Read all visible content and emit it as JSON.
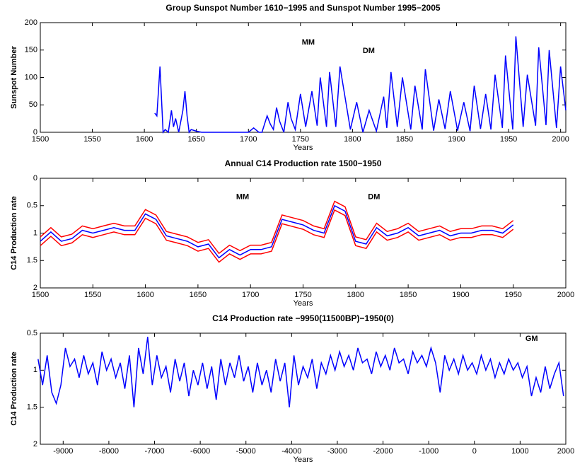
{
  "chart_data": [
    {
      "type": "line",
      "title": "Group Sunspot Number 1610−1995 and Sunspot Number 1995−2005",
      "xlabel": "Years",
      "ylabel": "Sunspot Number",
      "annotations": [
        "MM",
        "DM"
      ],
      "xlim": [
        1500,
        2005
      ],
      "ylim": [
        0,
        200
      ],
      "xticks": [
        1500,
        1550,
        1600,
        1650,
        1700,
        1750,
        1800,
        1850,
        1900,
        1950,
        2000
      ],
      "yticks": [
        0,
        50,
        100,
        150,
        200
      ],
      "series": [
        {
          "color": "#0000ff",
          "x": [
            1610,
            1612,
            1615,
            1618,
            1620,
            1623,
            1626,
            1628,
            1630,
            1633,
            1637,
            1639,
            1641,
            1643,
            1645,
            1650,
            1655,
            1660,
            1670,
            1680,
            1690,
            1700,
            1705,
            1710,
            1713,
            1718,
            1721,
            1724,
            1727,
            1730,
            1734,
            1738,
            1741,
            1745,
            1750,
            1755,
            1761,
            1766,
            1769,
            1775,
            1778,
            1784,
            1788,
            1798,
            1804,
            1810,
            1816,
            1823,
            1830,
            1833,
            1837,
            1843,
            1848,
            1856,
            1860,
            1867,
            1870,
            1878,
            1883,
            1889,
            1894,
            1901,
            1907,
            1913,
            1917,
            1923,
            1928,
            1933,
            1937,
            1944,
            1947,
            1954,
            1957,
            1964,
            1968,
            1976,
            1979,
            1986,
            1989,
            1996,
            2000,
            2005
          ],
          "values": [
            35,
            30,
            120,
            0,
            5,
            0,
            40,
            10,
            25,
            0,
            40,
            75,
            30,
            0,
            5,
            2,
            0,
            0,
            0,
            0,
            0,
            0,
            8,
            0,
            0,
            30,
            15,
            5,
            45,
            20,
            0,
            55,
            25,
            5,
            70,
            10,
            75,
            12,
            100,
            10,
            110,
            10,
            120,
            5,
            55,
            0,
            40,
            2,
            65,
            8,
            110,
            10,
            100,
            5,
            85,
            5,
            115,
            3,
            60,
            6,
            75,
            3,
            55,
            2,
            85,
            6,
            70,
            5,
            105,
            8,
            140,
            5,
            175,
            10,
            105,
            12,
            155,
            13,
            150,
            8,
            120,
            40
          ]
        }
      ]
    },
    {
      "type": "line",
      "title": "Annual C14 Production rate 1500−1950",
      "xlabel": "Years",
      "ylabel": "C14 Production rate",
      "annotations": [
        "MM",
        "DM"
      ],
      "xlim": [
        1500,
        2000
      ],
      "ylim": [
        0,
        2
      ],
      "y_reversed": true,
      "xticks": [
        1500,
        1550,
        1600,
        1650,
        1700,
        1750,
        1800,
        1850,
        1900,
        1950,
        2000
      ],
      "yticks": [
        0,
        0.5,
        1,
        1.5,
        2
      ],
      "series": [
        {
          "color": "#ff0000",
          "x": [
            1500,
            1510,
            1520,
            1530,
            1540,
            1550,
            1560,
            1570,
            1580,
            1590,
            1600,
            1610,
            1620,
            1630,
            1640,
            1650,
            1660,
            1670,
            1680,
            1690,
            1700,
            1710,
            1720,
            1730,
            1740,
            1750,
            1760,
            1770,
            1780,
            1790,
            1800,
            1810,
            1820,
            1830,
            1840,
            1850,
            1860,
            1870,
            1880,
            1890,
            1900,
            1910,
            1920,
            1930,
            1940,
            1950
          ],
          "values": [
            1.07,
            0.9,
            1.07,
            1.02,
            0.87,
            0.92,
            0.87,
            0.82,
            0.87,
            0.87,
            0.57,
            0.67,
            0.97,
            1.02,
            1.07,
            1.17,
            1.12,
            1.37,
            1.22,
            1.32,
            1.22,
            1.22,
            1.17,
            0.67,
            0.72,
            0.77,
            0.87,
            0.92,
            0.42,
            0.52,
            1.07,
            1.12,
            0.82,
            0.97,
            0.92,
            0.82,
            0.97,
            0.92,
            0.87,
            0.97,
            0.92,
            0.92,
            0.87,
            0.87,
            0.92,
            0.77
          ]
        },
        {
          "color": "#ff0000",
          "x": [
            1500,
            1510,
            1520,
            1530,
            1540,
            1550,
            1560,
            1570,
            1580,
            1590,
            1600,
            1610,
            1620,
            1630,
            1640,
            1650,
            1660,
            1670,
            1680,
            1690,
            1700,
            1710,
            1720,
            1730,
            1740,
            1750,
            1760,
            1770,
            1780,
            1790,
            1800,
            1810,
            1820,
            1830,
            1840,
            1850,
            1860,
            1870,
            1880,
            1890,
            1900,
            1910,
            1920,
            1930,
            1940,
            1950
          ],
          "values": [
            1.23,
            1.06,
            1.23,
            1.18,
            1.03,
            1.08,
            1.03,
            0.98,
            1.03,
            1.03,
            0.73,
            0.83,
            1.13,
            1.18,
            1.23,
            1.33,
            1.28,
            1.53,
            1.38,
            1.48,
            1.38,
            1.38,
            1.33,
            0.83,
            0.88,
            0.93,
            1.03,
            1.08,
            0.58,
            0.68,
            1.23,
            1.28,
            0.98,
            1.13,
            1.08,
            0.98,
            1.13,
            1.08,
            1.03,
            1.13,
            1.08,
            1.08,
            1.03,
            1.03,
            1.08,
            0.93
          ]
        },
        {
          "color": "#0000ff",
          "x": [
            1500,
            1510,
            1520,
            1530,
            1540,
            1550,
            1560,
            1570,
            1580,
            1590,
            1600,
            1610,
            1620,
            1630,
            1640,
            1650,
            1660,
            1670,
            1680,
            1690,
            1700,
            1710,
            1720,
            1730,
            1740,
            1750,
            1760,
            1770,
            1780,
            1790,
            1800,
            1810,
            1820,
            1830,
            1840,
            1850,
            1860,
            1870,
            1880,
            1890,
            1900,
            1910,
            1920,
            1930,
            1940,
            1950
          ],
          "values": [
            1.15,
            0.98,
            1.15,
            1.1,
            0.95,
            1.0,
            0.95,
            0.9,
            0.95,
            0.95,
            0.65,
            0.75,
            1.05,
            1.1,
            1.15,
            1.25,
            1.2,
            1.45,
            1.3,
            1.4,
            1.3,
            1.3,
            1.25,
            0.75,
            0.8,
            0.85,
            0.95,
            1.0,
            0.5,
            0.6,
            1.15,
            1.2,
            0.9,
            1.05,
            1.0,
            0.9,
            1.05,
            1.0,
            0.95,
            1.05,
            1.0,
            1.0,
            0.95,
            0.95,
            1.0,
            0.85
          ]
        }
      ]
    },
    {
      "type": "line",
      "title": "C14 Production rate −9950(11500BP)−1950(0)",
      "xlabel": "Years",
      "ylabel": "C14 Production rate",
      "annotations": [
        "GM"
      ],
      "xlim": [
        -9500,
        2000
      ],
      "ylim": [
        0.5,
        2
      ],
      "y_reversed": true,
      "xticks": [
        -9000,
        -8000,
        -7000,
        -6000,
        -5000,
        -4000,
        -3000,
        -2000,
        -1000,
        0,
        1000,
        2000
      ],
      "yticks": [
        0.5,
        1,
        1.5,
        2
      ],
      "series": [
        {
          "color": "#0000ff",
          "x": [
            -9550,
            -9450,
            -9350,
            -9250,
            -9150,
            -9050,
            -8950,
            -8850,
            -8750,
            -8650,
            -8550,
            -8450,
            -8350,
            -8250,
            -8150,
            -8050,
            -7950,
            -7850,
            -7750,
            -7650,
            -7550,
            -7450,
            -7350,
            -7250,
            -7150,
            -7050,
            -6950,
            -6850,
            -6750,
            -6650,
            -6550,
            -6450,
            -6350,
            -6250,
            -6150,
            -6050,
            -5950,
            -5850,
            -5750,
            -5650,
            -5550,
            -5450,
            -5350,
            -5250,
            -5150,
            -5050,
            -4950,
            -4850,
            -4750,
            -4650,
            -4550,
            -4450,
            -4350,
            -4250,
            -4150,
            -4050,
            -3950,
            -3850,
            -3750,
            -3650,
            -3550,
            -3450,
            -3350,
            -3250,
            -3150,
            -3050,
            -2950,
            -2850,
            -2750,
            -2650,
            -2550,
            -2450,
            -2350,
            -2250,
            -2150,
            -2050,
            -1950,
            -1850,
            -1750,
            -1650,
            -1550,
            -1450,
            -1350,
            -1250,
            -1150,
            -1050,
            -950,
            -850,
            -750,
            -650,
            -550,
            -450,
            -350,
            -250,
            -150,
            -50,
            50,
            150,
            250,
            350,
            450,
            550,
            650,
            750,
            850,
            950,
            1050,
            1150,
            1250,
            1350,
            1450,
            1550,
            1650,
            1750,
            1850,
            1950
          ],
          "values": [
            0.85,
            1.2,
            0.8,
            1.3,
            1.45,
            1.2,
            0.7,
            0.95,
            0.85,
            1.1,
            0.8,
            1.05,
            0.9,
            1.2,
            0.75,
            1.0,
            0.85,
            1.1,
            0.9,
            1.25,
            0.8,
            1.5,
            0.7,
            1.05,
            0.55,
            1.2,
            0.8,
            1.1,
            0.95,
            1.3,
            0.85,
            1.15,
            0.9,
            1.35,
            1.0,
            1.2,
            0.9,
            1.25,
            0.95,
            1.4,
            0.85,
            1.2,
            0.9,
            1.1,
            0.8,
            1.15,
            0.95,
            1.3,
            0.9,
            1.2,
            1.0,
            1.3,
            0.85,
            1.15,
            0.9,
            1.5,
            0.8,
            1.2,
            0.95,
            1.1,
            0.85,
            1.25,
            0.9,
            1.05,
            0.8,
            1.0,
            0.75,
            0.95,
            0.8,
            1.0,
            0.7,
            0.9,
            0.85,
            1.05,
            0.75,
            0.95,
            0.8,
            1.0,
            0.7,
            0.9,
            0.85,
            1.05,
            0.75,
            0.9,
            0.8,
            0.95,
            0.7,
            0.9,
            1.3,
            0.8,
            1.0,
            0.85,
            1.05,
            0.8,
            1.0,
            0.9,
            1.05,
            0.8,
            1.0,
            0.85,
            1.1,
            0.9,
            1.05,
            0.85,
            1.0,
            0.9,
            1.1,
            0.95,
            1.35,
            1.1,
            1.3,
            0.95,
            1.25,
            1.05,
            0.9,
            1.35
          ]
        }
      ]
    }
  ]
}
